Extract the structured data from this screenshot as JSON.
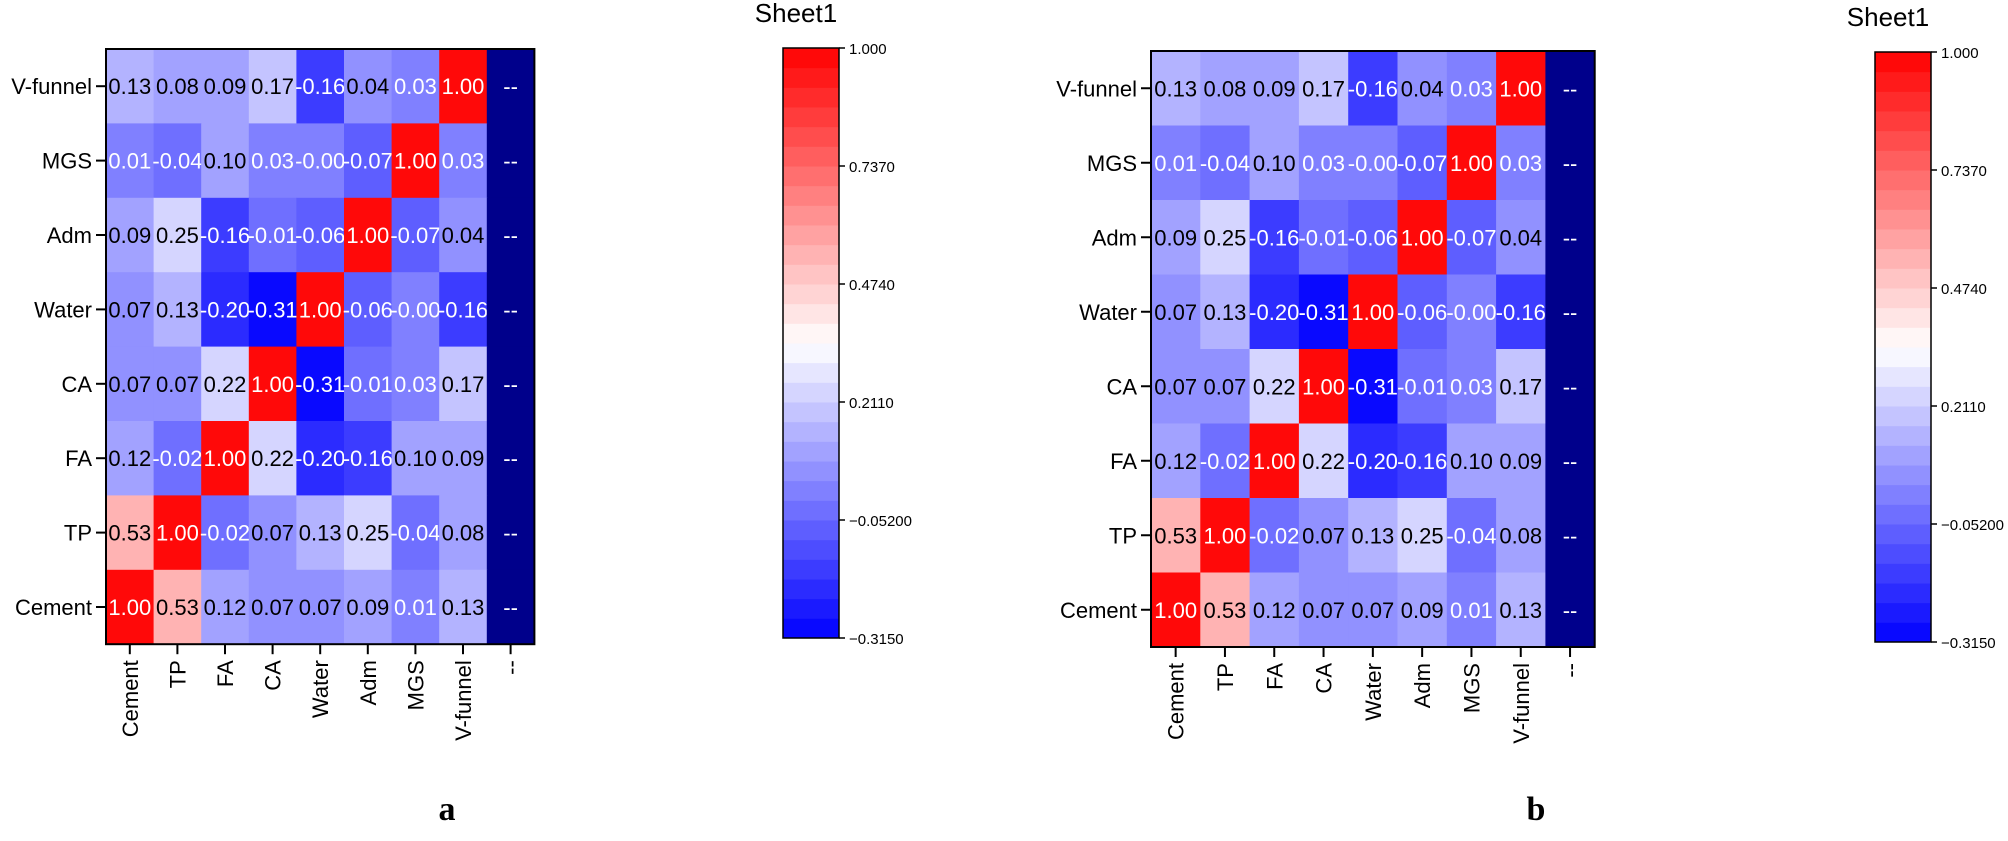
{
  "chart_data": [
    {
      "type": "heatmap",
      "panel_label": "a",
      "legend_title": "Sheet1",
      "colorbar_ticks": [
        "1.000",
        "0.7370",
        "0.4740",
        "0.2110",
        "−0.05200",
        "−0.3150"
      ],
      "vmin": -0.315,
      "vmax": 1.0,
      "x_categories": [
        "Cement",
        "TP",
        "FA",
        "CA",
        "Water",
        "Adm",
        "MGS",
        "V-funnel",
        "--"
      ],
      "y_categories": [
        "V-funnel",
        "MGS",
        "Adm",
        "Water",
        "CA",
        "FA",
        "TP",
        "Cement"
      ],
      "values": [
        [
          0.13,
          0.08,
          0.09,
          0.17,
          -0.16,
          0.04,
          0.03,
          1.0,
          null
        ],
        [
          0.01,
          -0.04,
          0.1,
          0.03,
          -0.0,
          -0.07,
          1.0,
          0.03,
          null
        ],
        [
          0.09,
          0.25,
          -0.16,
          -0.01,
          -0.06,
          1.0,
          -0.07,
          0.04,
          null
        ],
        [
          0.07,
          0.13,
          -0.2,
          -0.31,
          1.0,
          -0.06,
          -0.0,
          -0.16,
          null
        ],
        [
          0.07,
          0.07,
          0.22,
          1.0,
          -0.31,
          -0.01,
          0.03,
          0.17,
          null
        ],
        [
          0.12,
          -0.02,
          1.0,
          0.22,
          -0.2,
          -0.16,
          0.1,
          0.09,
          null
        ],
        [
          0.53,
          1.0,
          -0.02,
          0.07,
          0.13,
          0.25,
          -0.04,
          0.08,
          null
        ],
        [
          1.0,
          0.53,
          0.12,
          0.07,
          0.07,
          0.09,
          0.01,
          0.13,
          null
        ]
      ],
      "labels": [
        [
          "0.13",
          "0.08",
          "0.09",
          "0.17",
          "-0.16",
          "0.04",
          "0.03",
          "1.00",
          "--"
        ],
        [
          "0.01",
          "-0.04",
          "0.10",
          "0.03",
          "-0.00",
          "-0.07",
          "1.00",
          "0.03",
          "--"
        ],
        [
          "0.09",
          "0.25",
          "-0.16",
          "-0.01",
          "-0.06",
          "1.00",
          "-0.07",
          "0.04",
          "--"
        ],
        [
          "0.07",
          "0.13",
          "-0.20",
          "-0.31",
          "1.00",
          "-0.06",
          "-0.00",
          "-0.16",
          "--"
        ],
        [
          "0.07",
          "0.07",
          "0.22",
          "1.00",
          "-0.31",
          "-0.01",
          "0.03",
          "0.17",
          "--"
        ],
        [
          "0.12",
          "-0.02",
          "1.00",
          "0.22",
          "-0.20",
          "-0.16",
          "0.10",
          "0.09",
          "--"
        ],
        [
          "0.53",
          "1.00",
          "-0.02",
          "0.07",
          "0.13",
          "0.25",
          "-0.04",
          "0.08",
          "--"
        ],
        [
          "1.00",
          "0.53",
          "0.12",
          "0.07",
          "0.07",
          "0.09",
          "0.01",
          "0.13",
          "--"
        ]
      ]
    },
    {
      "type": "heatmap",
      "panel_label": "b",
      "legend_title": "Sheet1",
      "colorbar_ticks": [
        "1.000",
        "0.7370",
        "0.4740",
        "0.2110",
        "−0.05200",
        "−0.3150"
      ],
      "vmin": -0.315,
      "vmax": 1.0,
      "x_categories": [
        "Cement",
        "TP",
        "FA",
        "CA",
        "Water",
        "Adm",
        "MGS",
        "V-funnel",
        "--"
      ],
      "y_categories": [
        "V-funnel",
        "MGS",
        "Adm",
        "Water",
        "CA",
        "FA",
        "TP",
        "Cement"
      ],
      "values": [
        [
          0.13,
          0.08,
          0.09,
          0.17,
          -0.16,
          0.04,
          0.03,
          1.0,
          null
        ],
        [
          0.01,
          -0.04,
          0.1,
          0.03,
          -0.0,
          -0.07,
          1.0,
          0.03,
          null
        ],
        [
          0.09,
          0.25,
          -0.16,
          -0.01,
          -0.06,
          1.0,
          -0.07,
          0.04,
          null
        ],
        [
          0.07,
          0.13,
          -0.2,
          -0.31,
          1.0,
          -0.06,
          -0.0,
          -0.16,
          null
        ],
        [
          0.07,
          0.07,
          0.22,
          1.0,
          -0.31,
          -0.01,
          0.03,
          0.17,
          null
        ],
        [
          0.12,
          -0.02,
          1.0,
          0.22,
          -0.2,
          -0.16,
          0.1,
          0.09,
          null
        ],
        [
          0.53,
          1.0,
          -0.02,
          0.07,
          0.13,
          0.25,
          -0.04,
          0.08,
          null
        ],
        [
          1.0,
          0.53,
          0.12,
          0.07,
          0.07,
          0.09,
          0.01,
          0.13,
          null
        ]
      ],
      "labels": [
        [
          "0.13",
          "0.08",
          "0.09",
          "0.17",
          "-0.16",
          "0.04",
          "0.03",
          "1.00",
          "--"
        ],
        [
          "0.01",
          "-0.04",
          "0.10",
          "0.03",
          "-0.00",
          "-0.07",
          "1.00",
          "0.03",
          "--"
        ],
        [
          "0.09",
          "0.25",
          "-0.16",
          "-0.01",
          "-0.06",
          "1.00",
          "-0.07",
          "0.04",
          "--"
        ],
        [
          "0.07",
          "0.13",
          "-0.20",
          "-0.31",
          "1.00",
          "-0.06",
          "-0.00",
          "-0.16",
          "--"
        ],
        [
          "0.07",
          "0.07",
          "0.22",
          "1.00",
          "-0.31",
          "-0.01",
          "0.03",
          "0.17",
          "--"
        ],
        [
          "0.12",
          "-0.02",
          "1.00",
          "0.22",
          "-0.20",
          "-0.16",
          "0.10",
          "0.09",
          "--"
        ],
        [
          "0.53",
          "1.00",
          "-0.02",
          "0.07",
          "0.13",
          "0.25",
          "-0.04",
          "0.08",
          "--"
        ],
        [
          "1.00",
          "0.53",
          "0.12",
          "0.07",
          "0.07",
          "0.09",
          "0.01",
          "0.13",
          "--"
        ]
      ]
    }
  ],
  "colors": {
    "low": "#0000ff",
    "mid": "#ffffff",
    "high": "#ff0000",
    "missing": "#00008b"
  }
}
